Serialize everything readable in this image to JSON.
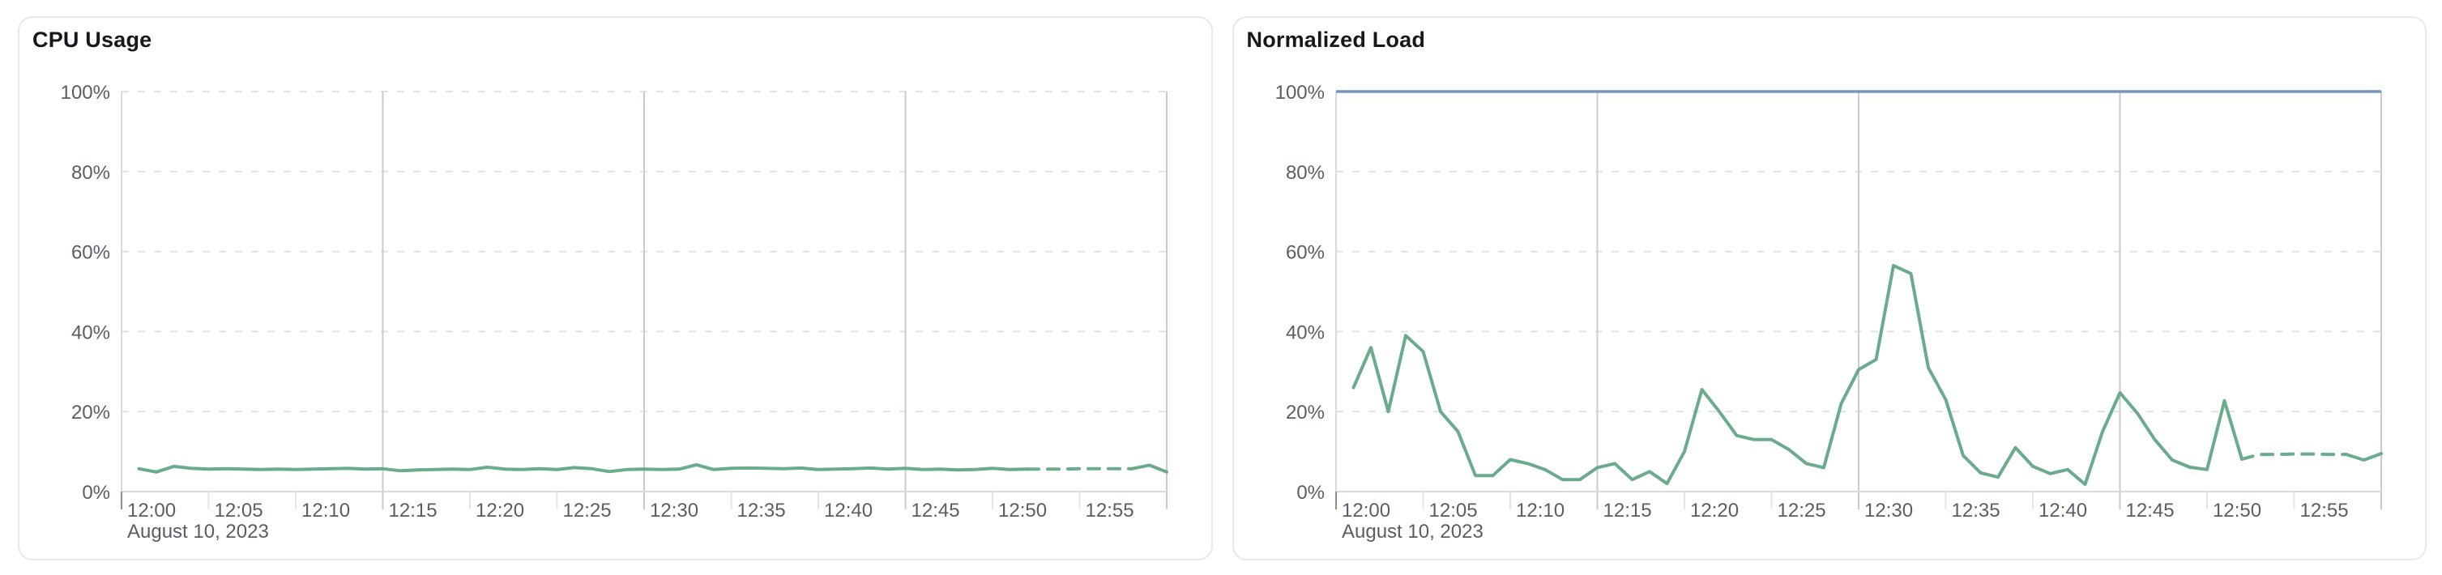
{
  "theme": {
    "background": "#ffffff",
    "card_border": "#e6e8ec",
    "title_text": "#16181d",
    "tick_text": "#595e66",
    "axis_line": "#d8dade",
    "grid_dashed": "#dfe2ec",
    "grid_major": "#c9cccf",
    "dark_tick": "#8a8f96",
    "light_tick": "#e3e5e9",
    "series_green": "#6aab8c",
    "limit_blue": "#7496c0"
  },
  "chart_data": [
    {
      "type": "line",
      "title": "CPU Usage",
      "x_axis": {
        "date_label": "August 10, 2023",
        "range_minutes": [
          0,
          60
        ],
        "tick_minutes": [
          0,
          5,
          10,
          15,
          20,
          25,
          30,
          35,
          40,
          45,
          50,
          55
        ],
        "tick_labels": [
          "12:00",
          "12:05",
          "12:10",
          "12:15",
          "12:20",
          "12:25",
          "12:30",
          "12:35",
          "12:40",
          "12:45",
          "12:50",
          "12:55"
        ],
        "major_gridline_minutes": [
          15,
          30,
          45,
          60
        ]
      },
      "y_axis": {
        "range": [
          0,
          100
        ],
        "ticks": [
          0,
          20,
          40,
          60,
          80,
          100
        ],
        "tick_labels": [
          "0%",
          "20%",
          "40%",
          "60%",
          "80%",
          "100%"
        ]
      },
      "limit_line": null,
      "series": [
        {
          "name": "cpu-usage",
          "color": "#6aab8c",
          "start_minute": 1,
          "step_minutes": 1,
          "unit": "%",
          "values": [
            5.7,
            4.9,
            6.3,
            5.8,
            5.6,
            5.7,
            5.6,
            5.5,
            5.6,
            5.5,
            5.6,
            5.7,
            5.8,
            5.6,
            5.7,
            5.2,
            5.4,
            5.5,
            5.6,
            5.5,
            6.1,
            5.6,
            5.5,
            5.7,
            5.5,
            6.0,
            5.7,
            5.0,
            5.5,
            5.6,
            5.5,
            5.6,
            6.7,
            5.5,
            5.8,
            5.9,
            5.8,
            5.7,
            5.9,
            5.5,
            5.6,
            5.7,
            5.9,
            5.6,
            5.8,
            5.5,
            5.6,
            5.4,
            5.5,
            5.8,
            5.5,
            5.6,
            5.6,
            5.6,
            5.7,
            5.7,
            5.7,
            5.7,
            6.6,
            4.9
          ],
          "style_segments": [
            {
              "from_min": 1,
              "to_min": 52,
              "style": "solid"
            },
            {
              "from_min": 52,
              "to_min": 58,
              "style": "dashed"
            },
            {
              "from_min": 58,
              "to_min": 60,
              "style": "solid"
            }
          ]
        }
      ]
    },
    {
      "type": "line",
      "title": "Normalized Load",
      "x_axis": {
        "date_label": "August 10, 2023",
        "range_minutes": [
          0,
          60
        ],
        "tick_minutes": [
          0,
          5,
          10,
          15,
          20,
          25,
          30,
          35,
          40,
          45,
          50,
          55
        ],
        "tick_labels": [
          "12:00",
          "12:05",
          "12:10",
          "12:15",
          "12:20",
          "12:25",
          "12:30",
          "12:35",
          "12:40",
          "12:45",
          "12:50",
          "12:55"
        ],
        "major_gridline_minutes": [
          15,
          30,
          45,
          60
        ]
      },
      "y_axis": {
        "range": [
          0,
          100
        ],
        "ticks": [
          0,
          20,
          40,
          60,
          80,
          100
        ],
        "tick_labels": [
          "0%",
          "20%",
          "40%",
          "60%",
          "80%",
          "100%"
        ]
      },
      "limit_line": {
        "value": 100,
        "color": "#7496c0"
      },
      "series": [
        {
          "name": "normalized-load",
          "color": "#6aab8c",
          "start_minute": 1,
          "step_minutes": 1,
          "unit": "%",
          "values": [
            26,
            36,
            20,
            39,
            35,
            20,
            15,
            4,
            4,
            8,
            7,
            5.5,
            3,
            3,
            6,
            7,
            3,
            5,
            2,
            10,
            25.5,
            20,
            14,
            13,
            13,
            10.5,
            7,
            6,
            22,
            30.5,
            33,
            56.5,
            54.5,
            31,
            23,
            9,
            4.7,
            3.6,
            11,
            6.3,
            4.5,
            5.5,
            1.8,
            15,
            24.7,
            19.6,
            13,
            7.9,
            6.1,
            5.5,
            22.7,
            8.1,
            9.3,
            9.3,
            9.4,
            9.4,
            9.3,
            9.3,
            7.9,
            9.5
          ],
          "style_segments": [
            {
              "from_min": 1,
              "to_min": 52,
              "style": "solid"
            },
            {
              "from_min": 52,
              "to_min": 58,
              "style": "dashed"
            },
            {
              "from_min": 58,
              "to_min": 60,
              "style": "solid"
            }
          ]
        }
      ]
    }
  ]
}
